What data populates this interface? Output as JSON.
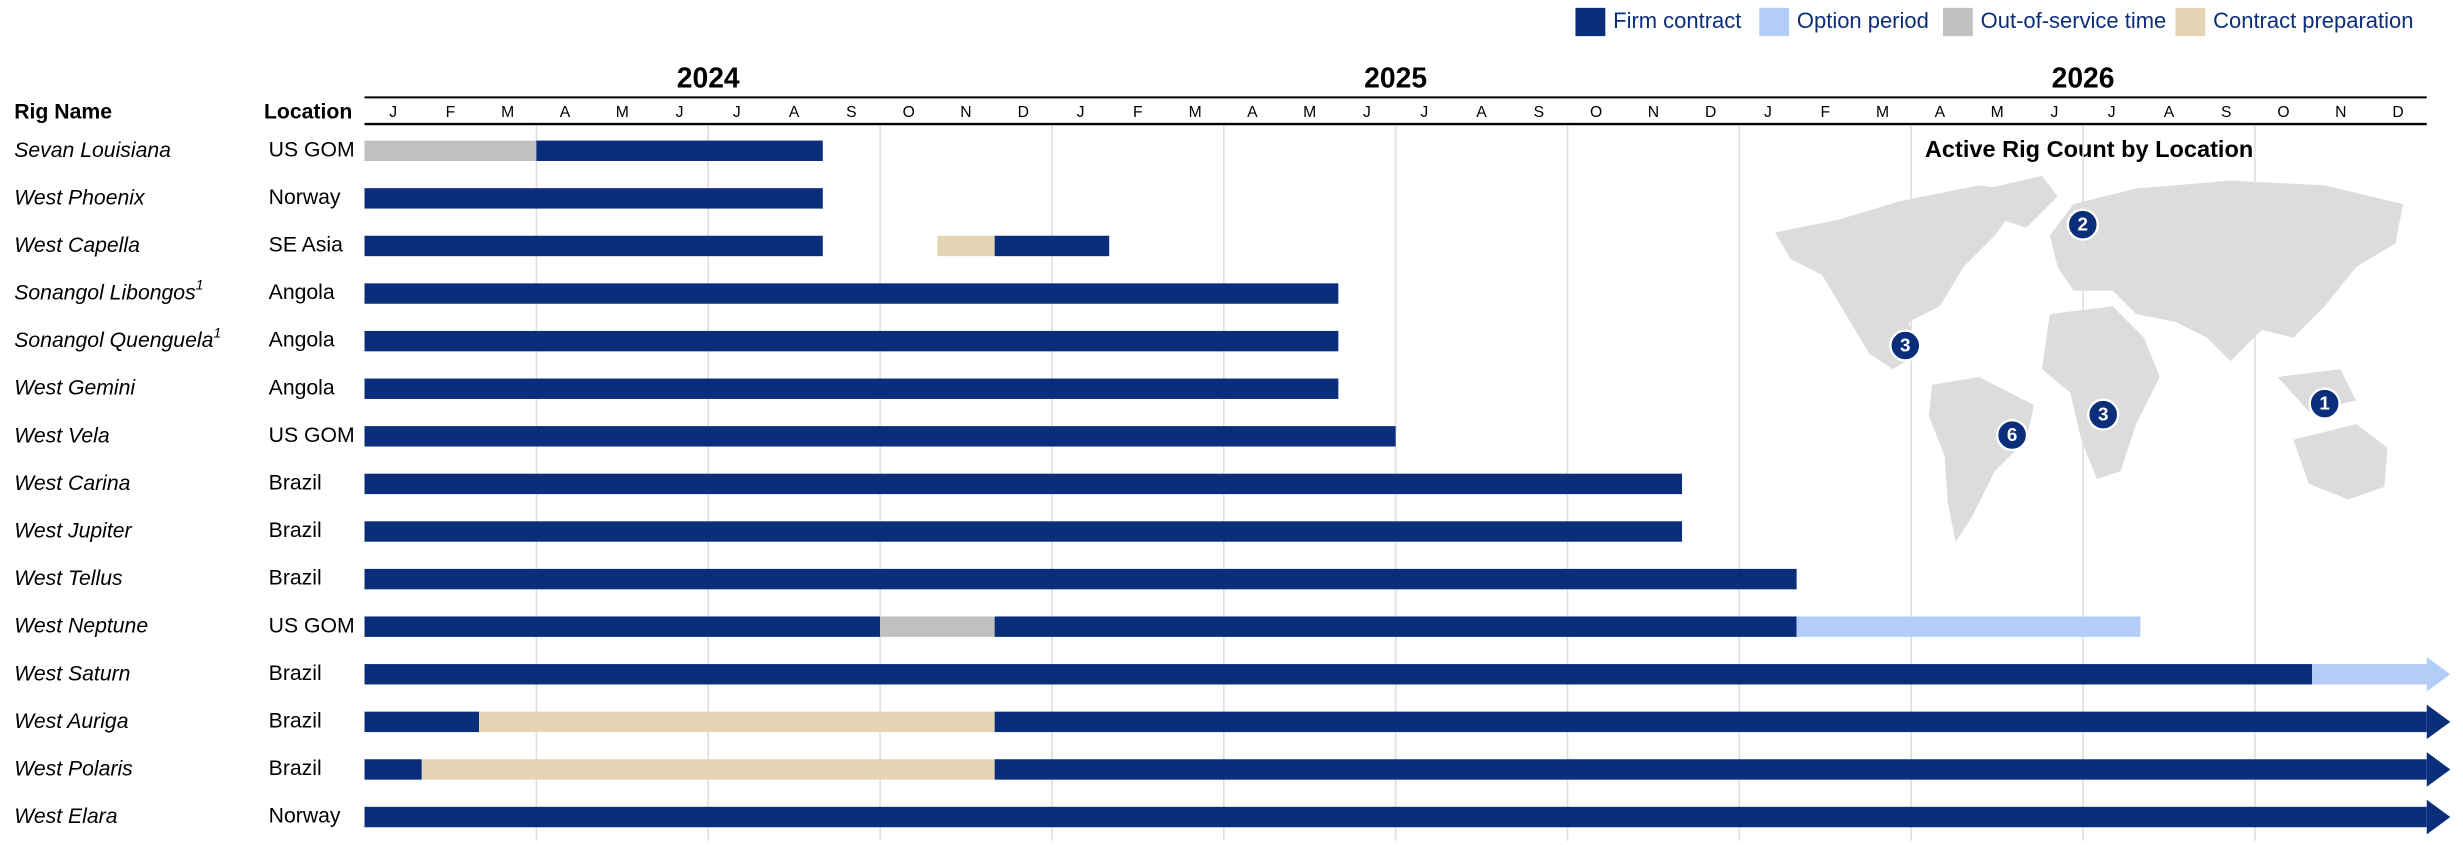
{
  "chart_data": {
    "type": "gantt",
    "column_headers": [
      "Rig Name",
      "Location"
    ],
    "years": [
      2024,
      2025,
      2026
    ],
    "months": [
      "J",
      "F",
      "M",
      "A",
      "M",
      "J",
      "J",
      "A",
      "S",
      "O",
      "N",
      "D",
      "J",
      "F",
      "M",
      "A",
      "M",
      "J",
      "J",
      "A",
      "S",
      "O",
      "N",
      "D",
      "J",
      "F",
      "M",
      "A",
      "M",
      "J",
      "J",
      "A",
      "S",
      "O",
      "N",
      "D"
    ],
    "xlim": [
      0,
      36
    ],
    "xticks": [
      3,
      6,
      9,
      12,
      15,
      18,
      21,
      24,
      27,
      30,
      33
    ],
    "grid": true,
    "legend": [
      {
        "label": "Firm contract",
        "color": "#0b2e7b"
      },
      {
        "label": "Option period",
        "color": "#b4cdf7"
      },
      {
        "label": "Out-of-service time",
        "color": "#c0c0c0"
      },
      {
        "label": "Contract preparation",
        "color": "#e4d6b4"
      }
    ],
    "rows": [
      {
        "name": "Sevan Louisiana",
        "location": "US GOM",
        "segments": [
          {
            "status": "Out-of-service time",
            "start": 0,
            "end": 3
          },
          {
            "status": "Firm contract",
            "start": 3,
            "end": 8
          }
        ]
      },
      {
        "name": "West Phoenix",
        "location": "Norway",
        "segments": [
          {
            "status": "Firm contract",
            "start": 0,
            "end": 8
          }
        ]
      },
      {
        "name": "West Capella",
        "location": "SE Asia",
        "segments": [
          {
            "status": "Firm contract",
            "start": 0,
            "end": 8
          },
          {
            "status": "Contract preparation",
            "start": 10,
            "end": 11
          },
          {
            "status": "Firm contract",
            "start": 11,
            "end": 13
          }
        ]
      },
      {
        "name": "Sonangol Libongos",
        "note": "1",
        "location": "Angola",
        "segments": [
          {
            "status": "Firm contract",
            "start": 0,
            "end": 17
          }
        ]
      },
      {
        "name": "Sonangol Quenguela",
        "note": "1",
        "location": "Angola",
        "segments": [
          {
            "status": "Firm contract",
            "start": 0,
            "end": 17
          }
        ]
      },
      {
        "name": "West Gemini",
        "location": "Angola",
        "segments": [
          {
            "status": "Firm contract",
            "start": 0,
            "end": 17
          }
        ]
      },
      {
        "name": "West Vela",
        "location": "US GOM",
        "segments": [
          {
            "status": "Firm contract",
            "start": 0,
            "end": 18
          }
        ]
      },
      {
        "name": "West Carina",
        "location": "Brazil",
        "segments": [
          {
            "status": "Firm contract",
            "start": 0,
            "end": 23
          }
        ]
      },
      {
        "name": "West Jupiter",
        "location": "Brazil",
        "segments": [
          {
            "status": "Firm contract",
            "start": 0,
            "end": 23
          }
        ]
      },
      {
        "name": "West Tellus",
        "location": "Brazil",
        "segments": [
          {
            "status": "Firm contract",
            "start": 0,
            "end": 25
          }
        ]
      },
      {
        "name": "West Neptune",
        "location": "US GOM",
        "segments": [
          {
            "status": "Firm contract",
            "start": 0,
            "end": 9
          },
          {
            "status": "Out-of-service time",
            "start": 9,
            "end": 11
          },
          {
            "status": "Firm contract",
            "start": 11,
            "end": 25
          },
          {
            "status": "Option period",
            "start": 25,
            "end": 31
          }
        ]
      },
      {
        "name": "West Saturn",
        "location": "Brazil",
        "segments": [
          {
            "status": "Firm contract",
            "start": 0,
            "end": 34
          },
          {
            "status": "Option period",
            "start": 34,
            "end": 36
          }
        ]
      },
      {
        "name": "West Auriga",
        "location": "Brazil",
        "segments": [
          {
            "status": "Firm contract",
            "start": 0,
            "end": 2
          },
          {
            "status": "Contract preparation",
            "start": 2,
            "end": 11
          },
          {
            "status": "Firm contract",
            "start": 11,
            "end": 36
          }
        ]
      },
      {
        "name": "West Polaris",
        "location": "Brazil",
        "segments": [
          {
            "status": "Firm contract",
            "start": 0,
            "end": 1
          },
          {
            "status": "Contract preparation",
            "start": 1,
            "end": 11
          },
          {
            "status": "Firm contract",
            "start": 11,
            "end": 36
          }
        ]
      },
      {
        "name": "West Elara",
        "location": "Norway",
        "segments": [
          {
            "status": "Firm contract",
            "start": 0,
            "end": 36
          }
        ]
      }
    ],
    "map": {
      "title": "Active Rig Count by Location",
      "counts": [
        2,
        3,
        6,
        3,
        1
      ]
    }
  }
}
